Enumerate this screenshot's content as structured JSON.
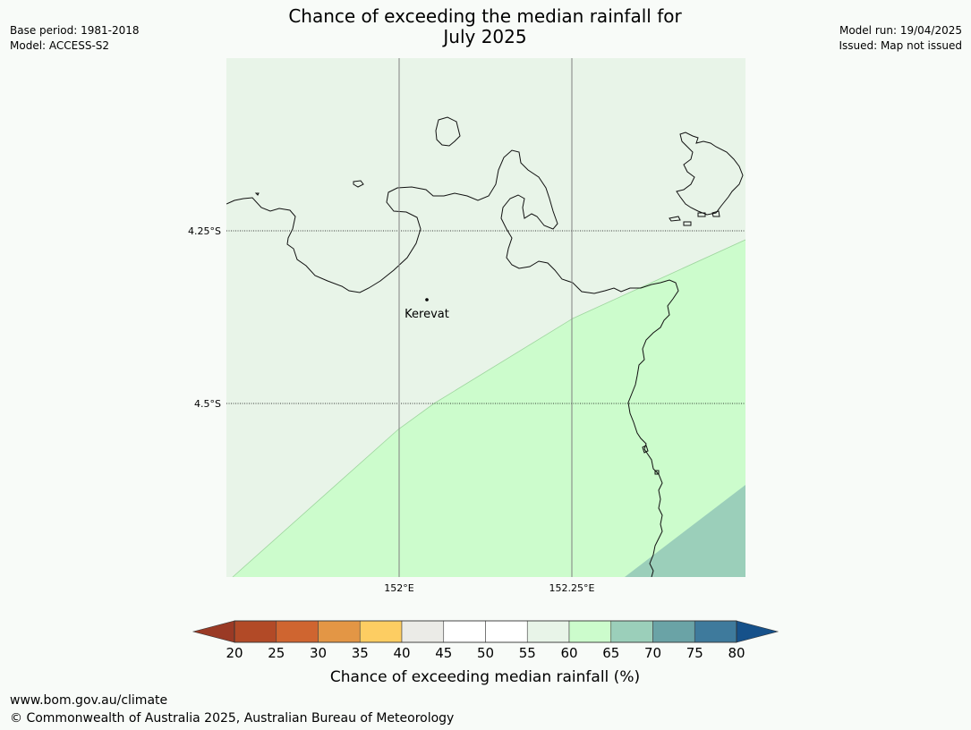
{
  "header": {
    "base_period": "Base period: 1981-2018",
    "model": "Model: ACCESS-S2",
    "title_line1": "Chance of exceeding the median rainfall for",
    "title_line2": "July 2025",
    "model_run": "Model run: 19/04/2025",
    "issued": "Issued: Map not issued"
  },
  "map": {
    "lat_labels": [
      "4.25°S",
      "4.5°S"
    ],
    "lon_labels": [
      "152°E",
      "152.25°E"
    ],
    "place": {
      "name": "Kerevat"
    },
    "zones": [
      {
        "category": "55-60",
        "color": "#e8f4e8"
      },
      {
        "category": "60-65",
        "color": "#ccfccc"
      },
      {
        "category": "65-70",
        "color": "#9bcfba"
      }
    ],
    "coastline_color": "#000000",
    "gridline_color": "#808080"
  },
  "colorbar": {
    "title": "Chance of exceeding median rainfall (%)",
    "ticks": [
      "20",
      "25",
      "30",
      "35",
      "40",
      "45",
      "50",
      "55",
      "60",
      "65",
      "70",
      "75",
      "80"
    ],
    "under_color": "#9a3a25",
    "over_color": "#16518a",
    "colors": [
      "#b24a27",
      "#cf6530",
      "#e39645",
      "#fdcd62",
      "#ebebe7",
      "#ffffff",
      "#ffffff",
      "#e8f4e8",
      "#ccfccc",
      "#9bcfba",
      "#6aa3a6",
      "#3e7a9c"
    ]
  },
  "footer": {
    "url": "www.bom.gov.au/climate",
    "copyright": "© Commonwealth of Australia 2025, Australian Bureau of Meteorology"
  }
}
